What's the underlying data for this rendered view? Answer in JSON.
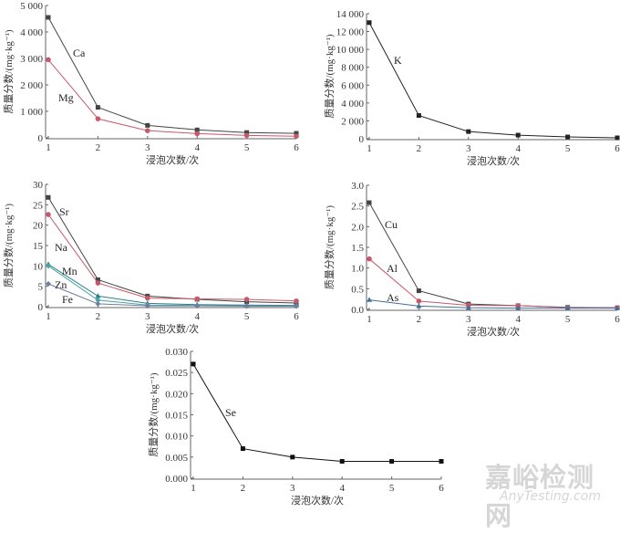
{
  "chart_data": [
    {
      "type": "line",
      "xlabel": "浸泡次数/次",
      "ylabel": "质量分数/(mg·kg⁻¹)",
      "x": [
        1,
        2,
        3,
        4,
        5,
        6
      ],
      "ylim": [
        0,
        5000
      ],
      "yticks": [
        "0",
        "1 000",
        "2 000",
        "3 000",
        "4 000",
        "5 000"
      ],
      "ytick_values": [
        0,
        1000,
        2000,
        3000,
        4000,
        5000
      ],
      "series": [
        {
          "name": "Ca",
          "values": [
            4550,
            1150,
            470,
            300,
            200,
            170
          ],
          "color": "#444444",
          "marker": "square"
        },
        {
          "name": "Mg",
          "values": [
            2950,
            720,
            270,
            160,
            90,
            60
          ],
          "color": "#c8596a",
          "marker": "circle"
        }
      ]
    },
    {
      "type": "line",
      "xlabel": "浸泡次数/次",
      "ylabel": "质量分数/(mg·kg⁻¹)",
      "x": [
        1,
        2,
        3,
        4,
        5,
        6
      ],
      "ylim": [
        0,
        14000
      ],
      "yticks": [
        "0",
        "2 000",
        "4 000",
        "6 000",
        "8 000",
        "10 000",
        "12 000",
        "14 000"
      ],
      "ytick_values": [
        0,
        2000,
        4000,
        6000,
        8000,
        10000,
        12000,
        14000
      ],
      "series": [
        {
          "name": "K",
          "values": [
            13000,
            2600,
            800,
            400,
            200,
            100
          ],
          "color": "#222222",
          "marker": "square"
        }
      ]
    },
    {
      "type": "line",
      "xlabel": "浸泡次数/次",
      "ylabel": "质量分数/(mg·kg⁻¹)",
      "x": [
        1,
        2,
        3,
        4,
        5,
        6
      ],
      "ylim": [
        0,
        30
      ],
      "yticks": [
        "0",
        "5",
        "10",
        "15",
        "20",
        "25",
        "30"
      ],
      "ytick_values": [
        0,
        5,
        10,
        15,
        20,
        25,
        30
      ],
      "series": [
        {
          "name": "Sr",
          "values": [
            26.8,
            6.6,
            2.6,
            1.8,
            1.2,
            0.9
          ],
          "color": "#444444",
          "marker": "square"
        },
        {
          "name": "Na",
          "values": [
            22.6,
            5.8,
            2.1,
            1.9,
            1.8,
            1.4
          ],
          "color": "#c8596a",
          "marker": "circle"
        },
        {
          "name": "Mn",
          "values": [
            10.4,
            2.6,
            0.8,
            0.5,
            0.4,
            0.3
          ],
          "color": "#2f7f86",
          "marker": "triangle"
        },
        {
          "name": "Zn",
          "values": [
            10.0,
            1.6,
            0.4,
            0.3,
            0.2,
            0.2
          ],
          "color": "#4aa3a6",
          "marker": "diamond"
        },
        {
          "name": "Fe",
          "values": [
            5.6,
            0.7,
            0.2,
            0.2,
            0.1,
            0.1
          ],
          "color": "#6f7fa0",
          "marker": "diamond"
        }
      ]
    },
    {
      "type": "line",
      "xlabel": "浸泡次数/次",
      "ylabel": "质量分数/(mg·kg⁻¹)",
      "x": [
        1,
        2,
        3,
        4,
        5,
        6
      ],
      "ylim": [
        0,
        3.0
      ],
      "yticks": [
        "0.0",
        "0.5",
        "1.0",
        "1.5",
        "2.0",
        "2.5",
        "3.0"
      ],
      "ytick_values": [
        0,
        0.5,
        1,
        1.5,
        2,
        2.5,
        3
      ],
      "series": [
        {
          "name": "Cu",
          "values": [
            2.58,
            0.45,
            0.13,
            0.09,
            0.05,
            0.04
          ],
          "color": "#444444",
          "marker": "square"
        },
        {
          "name": "Al",
          "values": [
            1.22,
            0.2,
            0.1,
            0.09,
            0.04,
            0.04
          ],
          "color": "#c8596a",
          "marker": "circle"
        },
        {
          "name": "As",
          "values": [
            0.23,
            0.08,
            0.04,
            0.03,
            0.03,
            0.03
          ],
          "color": "#3f6f9a",
          "marker": "triangle"
        }
      ]
    },
    {
      "type": "line",
      "xlabel": "浸泡次数/次",
      "ylabel": "质量分数/(mg·kg⁻¹)",
      "x": [
        1,
        2,
        3,
        4,
        5,
        6
      ],
      "ylim": [
        0,
        0.03
      ],
      "yticks": [
        "0.000",
        "0.005",
        "0.010",
        "0.015",
        "0.020",
        "0.025",
        "0.030"
      ],
      "ytick_values": [
        0,
        0.005,
        0.01,
        0.015,
        0.02,
        0.025,
        0.03
      ],
      "series": [
        {
          "name": "Se",
          "values": [
            0.027,
            0.007,
            0.005,
            0.004,
            0.004,
            0.004
          ],
          "color": "#111111",
          "marker": "square"
        }
      ]
    }
  ],
  "watermark": {
    "cn": "嘉峪检测网",
    "en": "AnyTesting.com"
  }
}
